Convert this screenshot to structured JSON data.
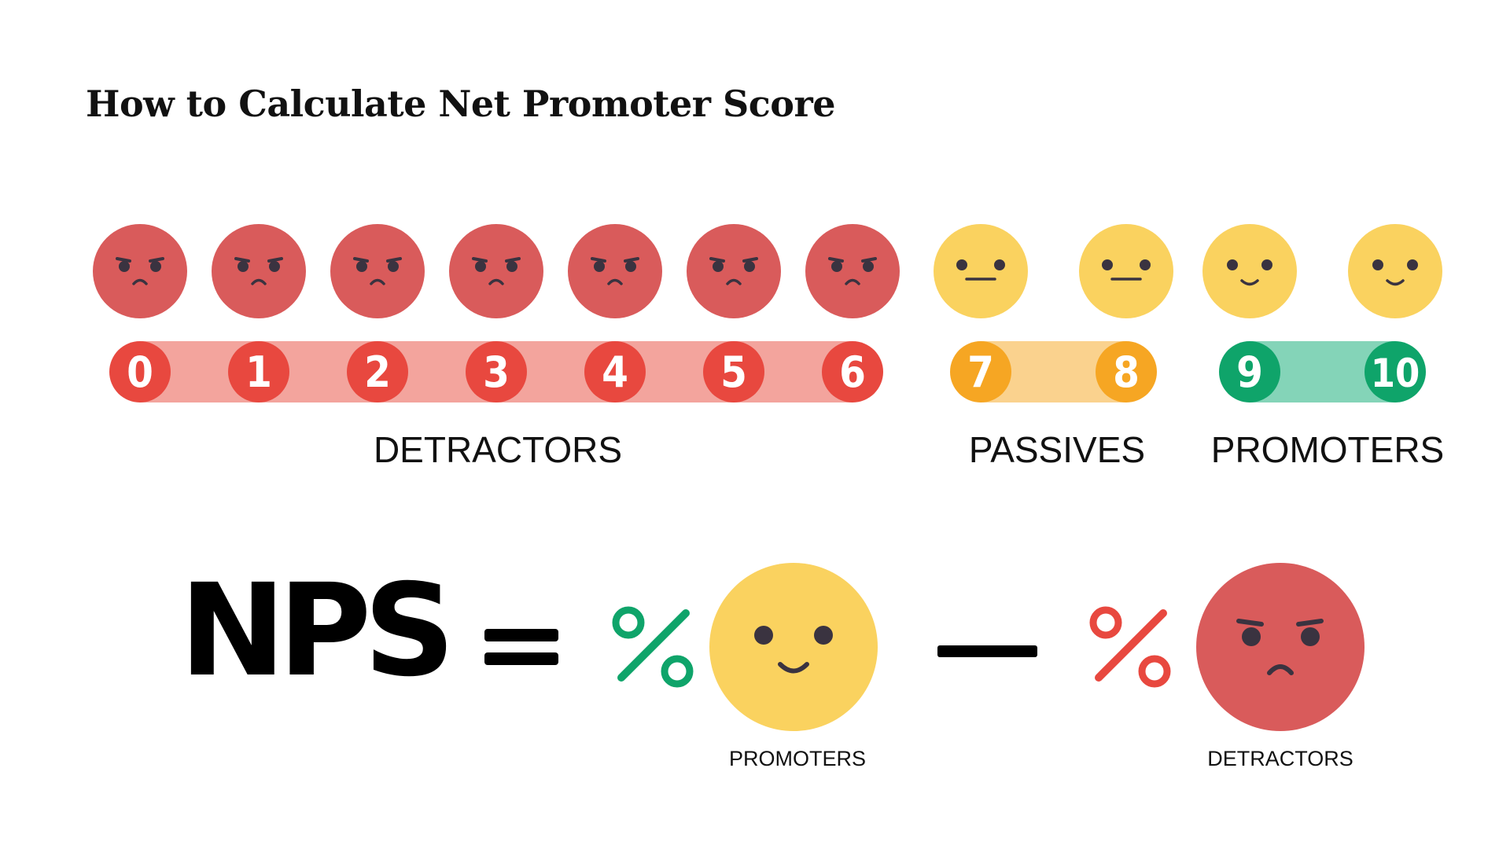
{
  "title": "How to Calculate Net Promoter Score",
  "colors": {
    "detractor_face": "#d95b5b",
    "detractor_badge": "#e8483f",
    "detractor_track": "#f3a49d",
    "passive_badge": "#f6a623",
    "passive_track": "#fad28e",
    "promoter_badge": "#0fa46a",
    "promoter_track": "#84d4b8",
    "neutral_face": "#fad25f",
    "eye": "#3a3340"
  },
  "scale": [
    {
      "score": "0",
      "group": "detractor",
      "face": "angry"
    },
    {
      "score": "1",
      "group": "detractor",
      "face": "angry"
    },
    {
      "score": "2",
      "group": "detractor",
      "face": "angry"
    },
    {
      "score": "3",
      "group": "detractor",
      "face": "angry"
    },
    {
      "score": "4",
      "group": "detractor",
      "face": "angry"
    },
    {
      "score": "5",
      "group": "detractor",
      "face": "angry"
    },
    {
      "score": "6",
      "group": "detractor",
      "face": "angry"
    },
    {
      "score": "7",
      "group": "passive",
      "face": "neutral"
    },
    {
      "score": "8",
      "group": "passive",
      "face": "neutral"
    },
    {
      "score": "9",
      "group": "promoter",
      "face": "smile"
    },
    {
      "score": "10",
      "group": "promoter",
      "face": "smile"
    }
  ],
  "groups": {
    "detractors": "DETRACTORS",
    "passives": "PASSIVES",
    "promoters": "PROMOTERS"
  },
  "formula": {
    "lhs": "NPS",
    "equals": "=",
    "minus": "—",
    "promoters_label": "PROMOTERS",
    "detractors_label": "DETRACTORS",
    "percent_icon": "percent-icon"
  }
}
